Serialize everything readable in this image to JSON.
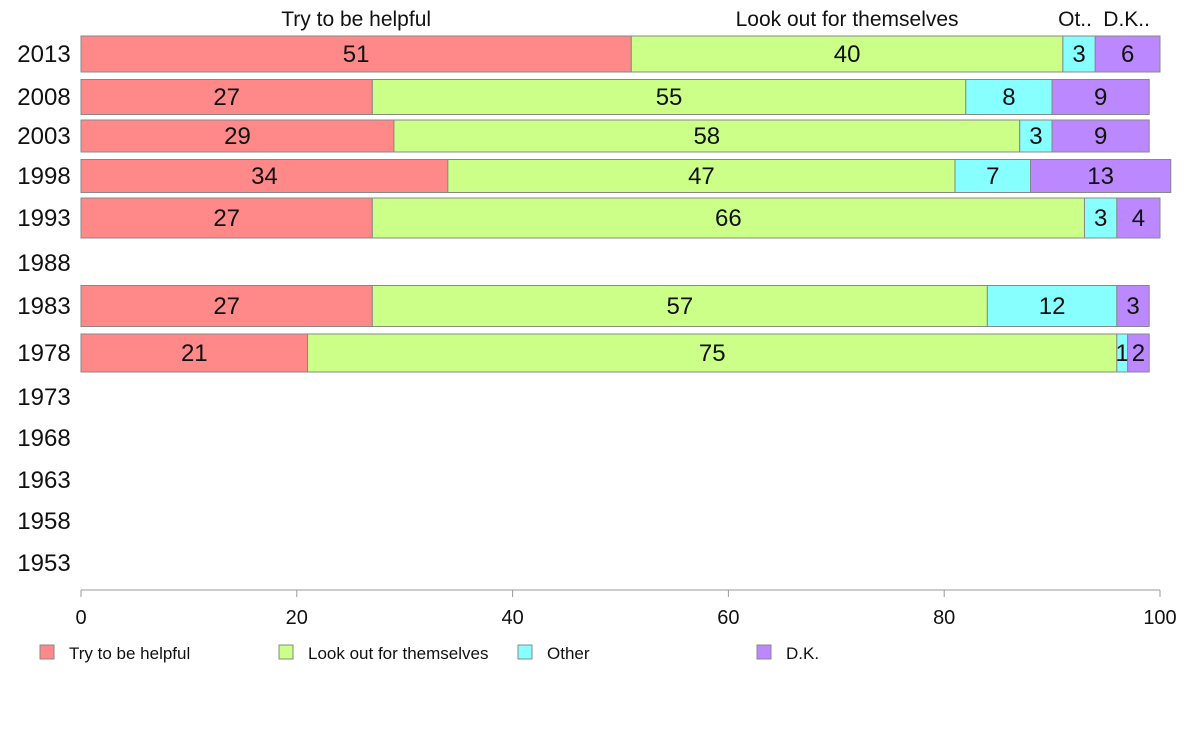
{
  "chart_data": {
    "type": "bar",
    "orientation": "horizontal",
    "stacked": true,
    "categories": [
      "2013",
      "2008",
      "2003",
      "1998",
      "1993",
      "1988",
      "1983",
      "1978",
      "1973",
      "1968",
      "1963",
      "1958",
      "1953"
    ],
    "series": [
      {
        "name": "Try to be helpful",
        "color": "#ff8888",
        "values": [
          51,
          27,
          29,
          34,
          27,
          null,
          27,
          21,
          null,
          null,
          null,
          null,
          null
        ]
      },
      {
        "name": "Look out for themselves",
        "color": "#ccff88",
        "values": [
          40,
          55,
          58,
          47,
          66,
          null,
          57,
          75,
          null,
          null,
          null,
          null,
          null
        ]
      },
      {
        "name": "Other",
        "color": "#88ffff",
        "values": [
          3,
          8,
          3,
          7,
          3,
          null,
          12,
          1,
          null,
          null,
          null,
          null,
          null
        ]
      },
      {
        "name": "D.K.",
        "color": "#bb88ff",
        "values": [
          6,
          9,
          9,
          13,
          4,
          null,
          3,
          2,
          null,
          null,
          null,
          null,
          null
        ]
      }
    ],
    "header_labels": [
      "Try to be helpful",
      "Look out for themselves",
      "Ot..",
      "D.K.."
    ],
    "xlim": [
      0,
      100
    ],
    "xticks": [
      "0",
      "20",
      "40",
      "60",
      "80",
      "100"
    ],
    "legend_position": "bottom-left",
    "grid": false,
    "title": "",
    "xlabel": "",
    "ylabel": ""
  }
}
